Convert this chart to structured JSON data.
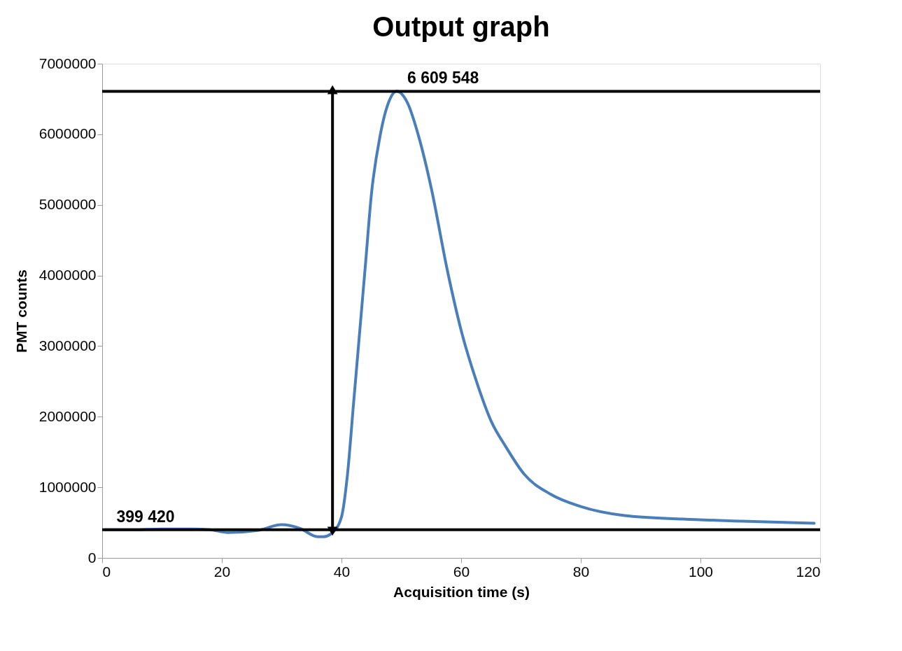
{
  "chart_data": {
    "type": "line",
    "title": "Output graph",
    "xlabel": "Acquisition time (s)",
    "ylabel": "PMT counts",
    "x": [
      0.5,
      5,
      10,
      15,
      18,
      21,
      26,
      30,
      33,
      36,
      37,
      38.5,
      40,
      41,
      42,
      43,
      44,
      45,
      46.5,
      48,
      49.2,
      51,
      53,
      55,
      57.7,
      60.1,
      62.6,
      65,
      67.5,
      70.5,
      75,
      79.9,
      87.3,
      97.1,
      106.9,
      119
    ],
    "series": [
      {
        "color": "#4a7ebb",
        "values": [
          400000,
          400000,
          410000,
          410000,
          400000,
          360000,
          390000,
          470000,
          420000,
          300000,
          300000,
          360000,
          580000,
          1180000,
          2170000,
          3160000,
          4150000,
          5150000,
          6000000,
          6480000,
          6610000,
          6450000,
          5940000,
          5240000,
          4070000,
          3190000,
          2490000,
          1940000,
          1570000,
          1190000,
          900000,
          730000,
          600000,
          550000,
          520000,
          490000
        ]
      },
      {
        "type": "line",
        "color": "#000000",
        "x": [
          38.5,
          38.5
        ],
        "values": [
          400000,
          6610000
        ],
        "marker": "triangle"
      }
    ],
    "xlim": [
      0,
      120
    ],
    "xticks": [
      0,
      20,
      40,
      60,
      80,
      100,
      120
    ],
    "ylim": [
      0,
      7000000
    ],
    "yticks": [
      0,
      1000000,
      2000000,
      3000000,
      4000000,
      5000000,
      6000000,
      7000000
    ],
    "ref_lines": [
      {
        "axis": "y",
        "value": 6609548,
        "label": "6 609 548",
        "color": "#000000"
      },
      {
        "axis": "y",
        "value": 399420,
        "label": "399 420",
        "color": "#000000"
      }
    ],
    "grid": false,
    "marker": "none",
    "line_style": "solid"
  }
}
